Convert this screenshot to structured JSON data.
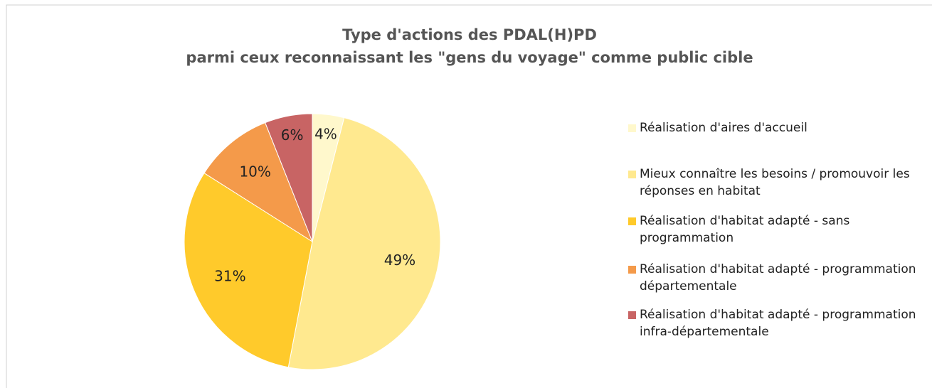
{
  "chart_data": {
    "type": "pie",
    "title": [
      "Type d'actions des PDAL(H)PD",
      "parmi ceux reconnaissant les \"gens du voyage\" comme public cible"
    ],
    "categories": [
      "Réalisation d'aires d'accueil",
      "Mieux connaître les besoins / promouvoir les réponses en habitat",
      "Réalisation d'habitat adapté - sans programmation",
      "Réalisation d'habitat adapté - programmation départementale",
      "Réalisation d'habitat adapté - programmation infra-départementale"
    ],
    "values": [
      4,
      49,
      31,
      10,
      6
    ],
    "value_labels": [
      "4%",
      "49%",
      "31%",
      "10%",
      "6%"
    ],
    "colors": [
      "#fff8cc",
      "#ffe98f",
      "#ffca2b",
      "#f49a4a",
      "#c86464"
    ],
    "legend": "right"
  }
}
